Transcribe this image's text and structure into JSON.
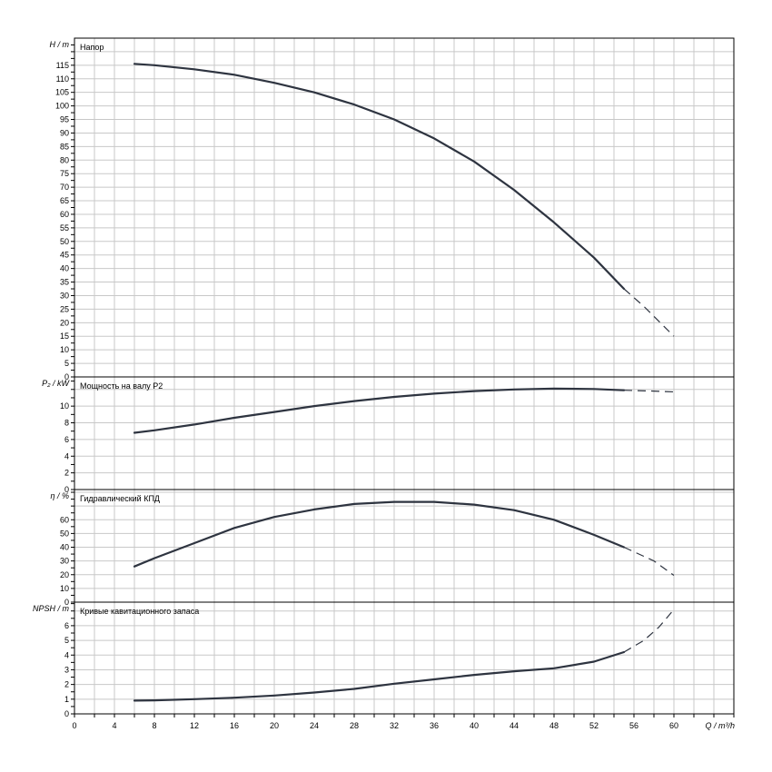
{
  "chart_data": {
    "type": "line",
    "x_axis": {
      "label": "Q / m³/h",
      "range": [
        0,
        66
      ],
      "ticks": [
        0,
        4,
        8,
        12,
        16,
        20,
        24,
        28,
        32,
        36,
        40,
        44,
        48,
        52,
        56,
        60
      ]
    },
    "grid": true,
    "panels": [
      {
        "id": "head",
        "title": "Напор",
        "ylabel": "H / m",
        "ylim": [
          0,
          125
        ],
        "ticks": [
          0,
          5,
          10,
          15,
          20,
          25,
          30,
          35,
          40,
          45,
          50,
          55,
          60,
          65,
          70,
          75,
          80,
          85,
          90,
          95,
          100,
          105,
          110,
          115
        ],
        "solid": [
          [
            6,
            115.5
          ],
          [
            8,
            115
          ],
          [
            12,
            113.5
          ],
          [
            16,
            111.5
          ],
          [
            20,
            108.5
          ],
          [
            24,
            105
          ],
          [
            28,
            100.5
          ],
          [
            32,
            95
          ],
          [
            36,
            88
          ],
          [
            40,
            79.5
          ],
          [
            44,
            69
          ],
          [
            48,
            57
          ],
          [
            52,
            44
          ],
          [
            55,
            32.5
          ]
        ],
        "dashed": [
          [
            55,
            32.5
          ],
          [
            57,
            26
          ],
          [
            60,
            15
          ]
        ]
      },
      {
        "id": "power",
        "title": "Мощность на валу P2",
        "ylabel": "P₂ / kW",
        "ylim": [
          0,
          13.5
        ],
        "ticks": [
          0,
          2,
          4,
          6,
          8,
          10
        ],
        "solid": [
          [
            6,
            6.8
          ],
          [
            8,
            7.1
          ],
          [
            12,
            7.8
          ],
          [
            16,
            8.6
          ],
          [
            20,
            9.3
          ],
          [
            24,
            10.0
          ],
          [
            28,
            10.6
          ],
          [
            32,
            11.1
          ],
          [
            36,
            11.5
          ],
          [
            40,
            11.8
          ],
          [
            44,
            12.0
          ],
          [
            48,
            12.1
          ],
          [
            52,
            12.05
          ],
          [
            55,
            11.9
          ]
        ],
        "dashed": [
          [
            55,
            11.9
          ],
          [
            58,
            11.8
          ],
          [
            60,
            11.7
          ]
        ]
      },
      {
        "id": "efficiency",
        "title": "Гидравлический КПД",
        "ylabel": "η / %",
        "ylim": [
          0,
          82
        ],
        "ticks": [
          0,
          10,
          20,
          30,
          40,
          50,
          60
        ],
        "solid": [
          [
            6,
            26
          ],
          [
            8,
            32
          ],
          [
            12,
            43
          ],
          [
            16,
            54
          ],
          [
            20,
            62
          ],
          [
            24,
            67.5
          ],
          [
            28,
            71.5
          ],
          [
            32,
            73
          ],
          [
            36,
            73
          ],
          [
            40,
            71
          ],
          [
            44,
            67
          ],
          [
            48,
            60
          ],
          [
            52,
            49
          ],
          [
            55,
            40
          ]
        ],
        "dashed": [
          [
            55,
            40
          ],
          [
            58,
            30
          ],
          [
            60,
            19.5
          ]
        ]
      },
      {
        "id": "npsh",
        "title": "Кривые кавитационного запаса",
        "ylabel": "NPSH / m",
        "ylim": [
          0,
          7.6
        ],
        "ticks": [
          0,
          1,
          2,
          3,
          4,
          5,
          6
        ],
        "solid": [
          [
            6,
            0.9
          ],
          [
            8,
            0.92
          ],
          [
            12,
            1.0
          ],
          [
            16,
            1.1
          ],
          [
            20,
            1.25
          ],
          [
            24,
            1.45
          ],
          [
            28,
            1.7
          ],
          [
            32,
            2.05
          ],
          [
            36,
            2.35
          ],
          [
            40,
            2.65
          ],
          [
            44,
            2.9
          ],
          [
            48,
            3.1
          ],
          [
            52,
            3.55
          ],
          [
            55,
            4.2
          ]
        ],
        "dashed": [
          [
            55,
            4.2
          ],
          [
            57,
            5.0
          ],
          [
            58.5,
            5.9
          ],
          [
            60,
            7.1
          ]
        ]
      }
    ]
  }
}
